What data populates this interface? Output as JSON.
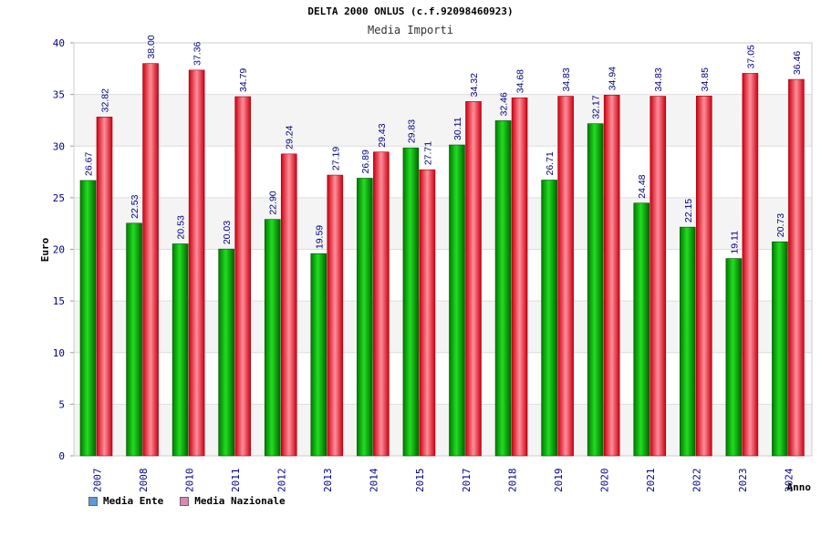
{
  "header": {
    "title": "DELTA 2000 ONLUS (c.f.92098460923)",
    "subtitle": "Media Importi"
  },
  "legend": {
    "items": [
      {
        "label": "Media Ente",
        "color": "#5b9bd5"
      },
      {
        "label": "Media Nazionale",
        "color": "#d988b4"
      }
    ]
  },
  "colors": {
    "ente": "#00aa00",
    "nazionale": "#ee1122",
    "axis_text": "#00008b",
    "label_text": "#000080"
  },
  "chart_data": {
    "type": "bar",
    "title": "DELTA 2000 ONLUS (c.f.92098460923)",
    "subtitle": "Media Importi",
    "xlabel": "Anno",
    "ylabel": "Euro",
    "ylim": [
      0,
      40
    ],
    "yticks": [
      0,
      5,
      10,
      15,
      20,
      25,
      30,
      35,
      40
    ],
    "grid": true,
    "legend_position": "bottom-left",
    "categories": [
      "2007",
      "2008",
      "2010",
      "2011",
      "2012",
      "2013",
      "2014",
      "2015",
      "2017",
      "2018",
      "2019",
      "2020",
      "2021",
      "2022",
      "2023",
      "2024"
    ],
    "series": [
      {
        "name": "Media Ente",
        "values": [
          26.67,
          22.53,
          20.53,
          20.03,
          22.9,
          19.59,
          26.89,
          29.83,
          30.11,
          32.46,
          26.71,
          32.17,
          24.48,
          22.15,
          19.11,
          20.73
        ],
        "labels": [
          "26.67",
          "22.53",
          "20.53",
          "20.03",
          "22.90",
          "19.59",
          "26.89",
          "29.83",
          "30.11",
          "32.46",
          "26.71",
          "32.17",
          "24.48",
          "22.15",
          "19.11",
          "20.73"
        ]
      },
      {
        "name": "Media Nazionale",
        "values": [
          32.82,
          38.0,
          37.36,
          34.79,
          29.24,
          27.19,
          29.43,
          27.71,
          34.32,
          34.68,
          34.83,
          34.94,
          34.83,
          34.85,
          37.05,
          36.46
        ],
        "labels": [
          "32.82",
          "38.00",
          "37.36",
          "34.79",
          "29.24",
          "27.19",
          "29.43",
          "27.71",
          "34.32",
          "34.68",
          "34.83",
          "34.94",
          "34.83",
          "34.85",
          "37.05",
          "36.46"
        ]
      }
    ]
  }
}
